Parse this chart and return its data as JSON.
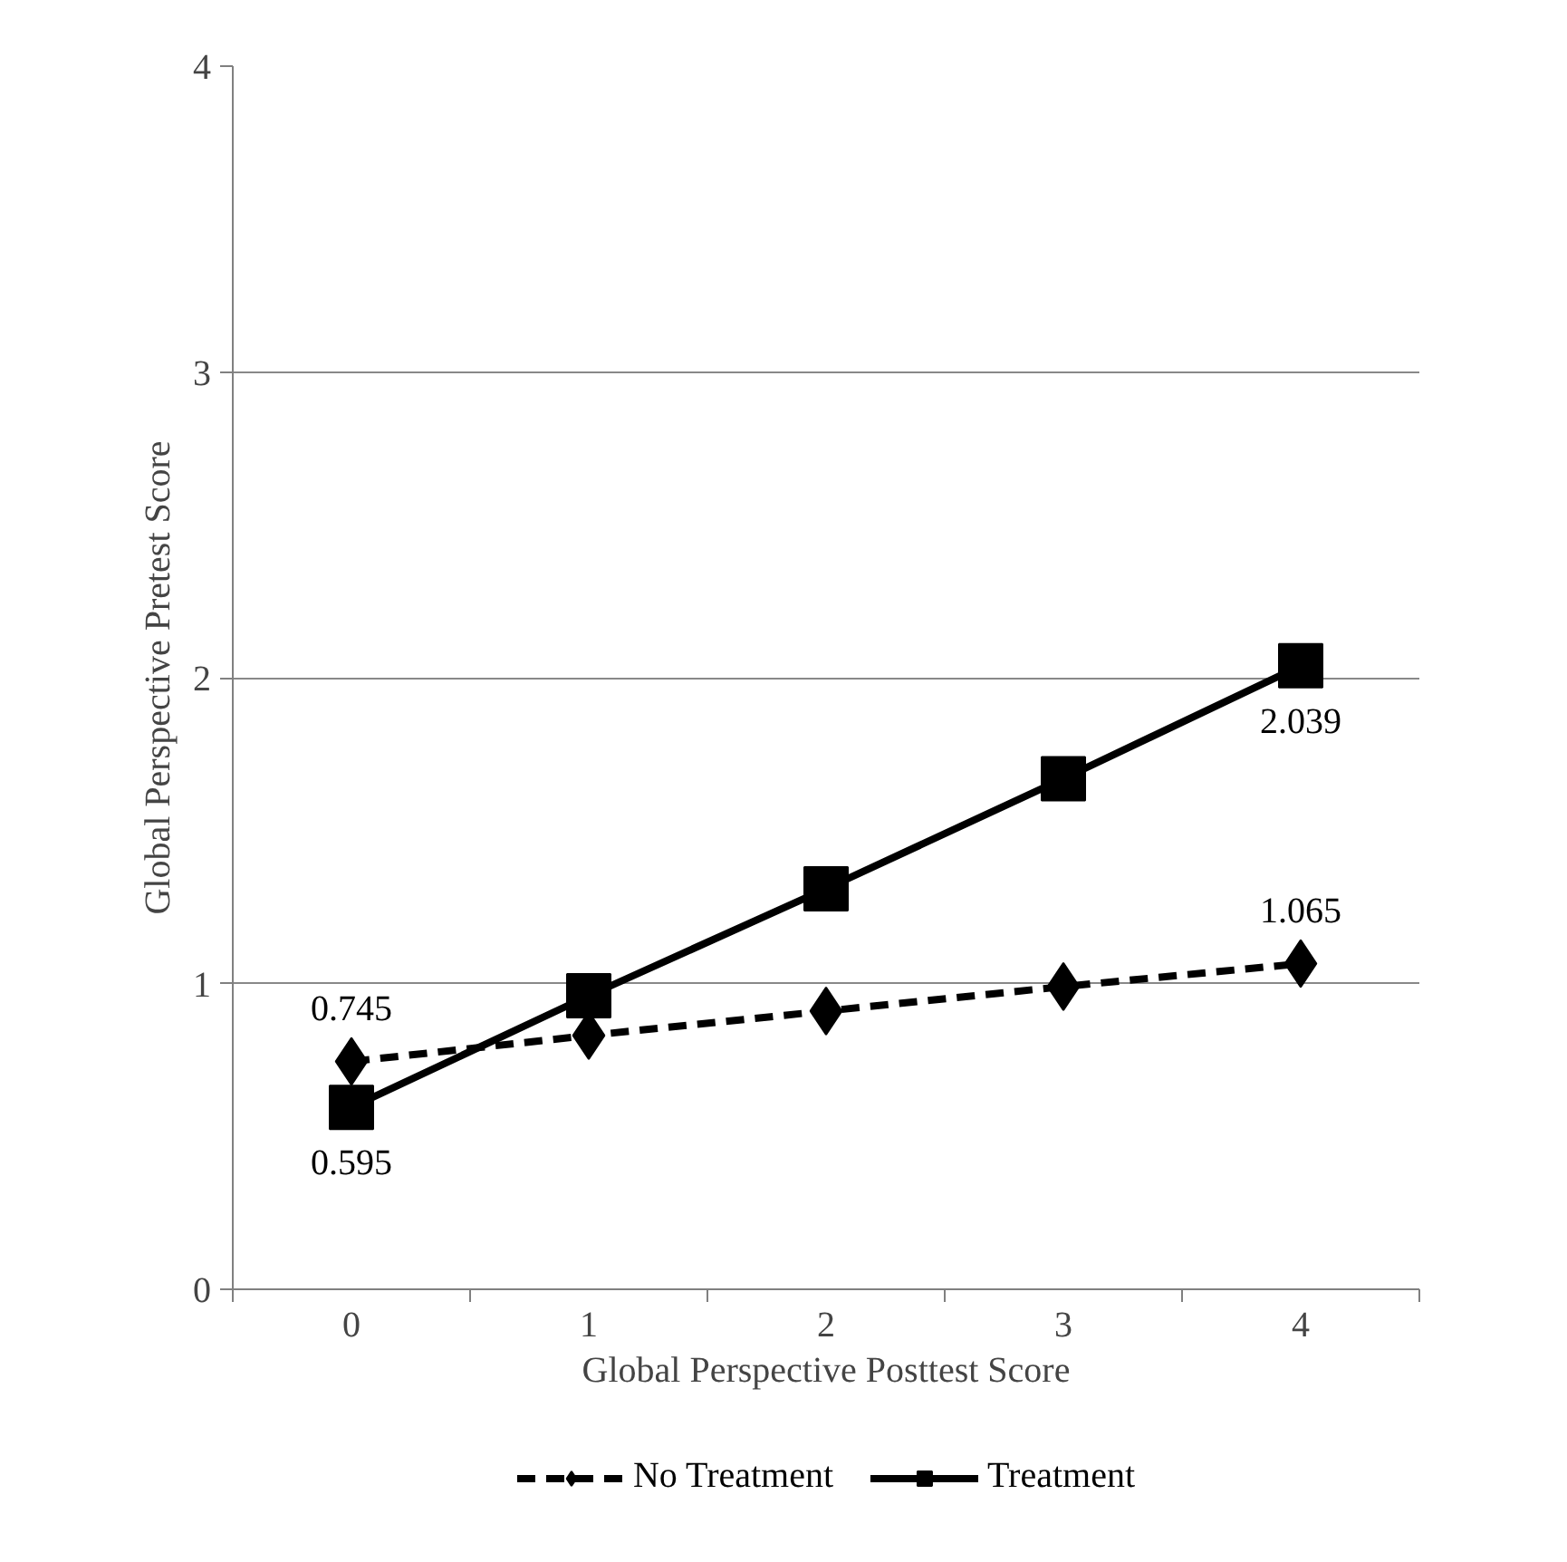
{
  "chart_data": {
    "type": "line",
    "xlabel": "Global Perspective Posttest Score",
    "ylabel": "Global Perspective Pretest Score",
    "categories": [
      "0",
      "1",
      "2",
      "3",
      "4"
    ],
    "series": [
      {
        "name": "No Treatment",
        "color": "#000000",
        "marker": "diamond",
        "line_style": "dashed",
        "values": [
          0.745,
          0.83,
          0.91,
          0.99,
          1.065
        ],
        "value_labels": [
          "0.745",
          null,
          null,
          null,
          "1.065"
        ]
      },
      {
        "name": "Treatment",
        "color": "#000000",
        "marker": "square",
        "line_style": "solid",
        "values": [
          0.595,
          0.96,
          1.31,
          1.67,
          2.039
        ],
        "value_labels": [
          "0.595",
          null,
          null,
          null,
          "2.039"
        ]
      }
    ],
    "ylim": [
      0,
      4
    ],
    "yticks": [
      0,
      1,
      2,
      3,
      4
    ],
    "grid": "y",
    "legend": "bottom"
  }
}
